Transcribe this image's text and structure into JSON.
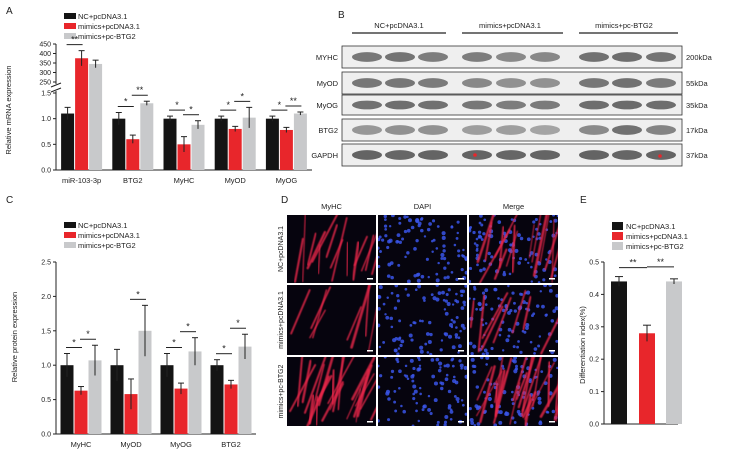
{
  "colors": {
    "nc": "#141414",
    "mimics": "#e8262b",
    "pcbtg2": "#c8c9cb",
    "axis": "#222222"
  },
  "panel_labels": {
    "a": "A",
    "b": "B",
    "c": "C",
    "d": "D",
    "e": "E"
  },
  "legend": {
    "nc": "NC+pcDNA3.1",
    "mimics": "mimics+pcDNA3.1",
    "pcbtg2": "mimics+pc-BTG2"
  },
  "blot": {
    "groups": [
      "NC+pcDNA3.1",
      "mimics+pcDNA3.1",
      "mimics+pc-BTG2"
    ],
    "rows": [
      {
        "name": "MYHC",
        "kda": "200kDa"
      },
      {
        "name": "MyOD",
        "kda": "55kDa"
      },
      {
        "name": "MyOG",
        "kda": "35kDa"
      },
      {
        "name": "BTG2",
        "kda": "17kDa"
      },
      {
        "name": "GAPDH",
        "kda": "37kDa"
      }
    ]
  },
  "micro": {
    "columns": [
      "MyHC",
      "DAPI",
      "Merge"
    ],
    "rows": [
      "NC+pcDNA3.1",
      "mimics+pcDNA3.1",
      "mimics+pc-BTG2"
    ]
  },
  "chart_data": [
    {
      "panel": "A",
      "type": "bar",
      "categories": [
        "miR-103-3p",
        "BTG2",
        "MyHC",
        "MyOD",
        "MyOG"
      ],
      "ylabel": "Relative mRNA expression",
      "axis_break": {
        "lower": [
          0,
          1.5
        ],
        "upper": [
          250,
          450
        ]
      },
      "lower_ticks": [
        "0.0",
        "0.5",
        "1.0",
        "1.5"
      ],
      "upper_ticks": [
        "250",
        "300",
        "350",
        "400",
        "450"
      ],
      "series": [
        {
          "name": "NC+pcDNA3.1",
          "values": [
            1.1,
            1.0,
            1.0,
            1.0,
            1.0
          ],
          "errors": [
            0.12,
            0.12,
            0.05,
            0.05,
            0.05
          ]
        },
        {
          "name": "mimics+pcDNA3.1",
          "values": [
            375,
            0.6,
            0.5,
            0.8,
            0.78
          ],
          "errors": [
            40,
            0.08,
            0.15,
            0.05,
            0.05
          ]
        },
        {
          "name": "mimics+pc-BTG2",
          "values": [
            345,
            1.3,
            0.88,
            1.02,
            1.1
          ],
          "errors": [
            20,
            0.04,
            0.08,
            0.2,
            0.03
          ]
        }
      ],
      "significance": [
        {
          "category": 0,
          "from": 0,
          "to": 1,
          "label": "**"
        },
        {
          "category": 1,
          "from": 0,
          "to": 1,
          "label": "*"
        },
        {
          "category": 1,
          "from": 1,
          "to": 2,
          "label": "**"
        },
        {
          "category": 2,
          "from": 0,
          "to": 1,
          "label": "*"
        },
        {
          "category": 2,
          "from": 1,
          "to": 2,
          "label": "*"
        },
        {
          "category": 3,
          "from": 0,
          "to": 1,
          "label": "*"
        },
        {
          "category": 3,
          "from": 1,
          "to": 2,
          "label": "*"
        },
        {
          "category": 4,
          "from": 0,
          "to": 1,
          "label": "*"
        },
        {
          "category": 4,
          "from": 1,
          "to": 2,
          "label": "**"
        }
      ]
    },
    {
      "panel": "C",
      "type": "bar",
      "categories": [
        "MyHC",
        "MyOD",
        "MyOG",
        "BTG2"
      ],
      "ylabel": "Relative protein expression",
      "ylim": [
        0,
        2.5
      ],
      "yticks": [
        "0.0",
        "0.5",
        "1.0",
        "1.5",
        "2.0",
        "2.5"
      ],
      "series": [
        {
          "name": "NC+pcDNA3.1",
          "values": [
            1.0,
            1.0,
            1.0,
            1.0
          ],
          "errors": [
            0.17,
            0.23,
            0.17,
            0.08
          ]
        },
        {
          "name": "mimics+pcDNA3.1",
          "values": [
            0.63,
            0.58,
            0.66,
            0.72
          ],
          "errors": [
            0.06,
            0.22,
            0.08,
            0.06
          ]
        },
        {
          "name": "mimics+pc-BTG2",
          "values": [
            1.07,
            1.5,
            1.2,
            1.27
          ],
          "errors": [
            0.22,
            0.37,
            0.2,
            0.18
          ]
        }
      ],
      "significance": [
        {
          "category": 0,
          "from": 0,
          "to": 1,
          "label": "*"
        },
        {
          "category": 0,
          "from": 1,
          "to": 2,
          "label": "*"
        },
        {
          "category": 1,
          "from": 1,
          "to": 2,
          "label": "*"
        },
        {
          "category": 2,
          "from": 0,
          "to": 1,
          "label": "*"
        },
        {
          "category": 2,
          "from": 1,
          "to": 2,
          "label": "*"
        },
        {
          "category": 3,
          "from": 0,
          "to": 1,
          "label": "*"
        },
        {
          "category": 3,
          "from": 1,
          "to": 2,
          "label": "*"
        }
      ]
    },
    {
      "panel": "E",
      "type": "bar",
      "categories": [
        "NC+pcDNA3.1",
        "mimics+pcDNA3.1",
        "mimics+pc-BTG2"
      ],
      "ylabel": "Differentiation index(%)",
      "ylim": [
        0,
        0.5
      ],
      "yticks": [
        "0.0",
        "0.1",
        "0.2",
        "0.3",
        "0.4",
        "0.5"
      ],
      "values": [
        0.44,
        0.28,
        0.44
      ],
      "errors": [
        0.015,
        0.025,
        0.008
      ],
      "significance": [
        {
          "from": 0,
          "to": 1,
          "label": "**"
        },
        {
          "from": 1,
          "to": 2,
          "label": "**"
        }
      ]
    }
  ]
}
